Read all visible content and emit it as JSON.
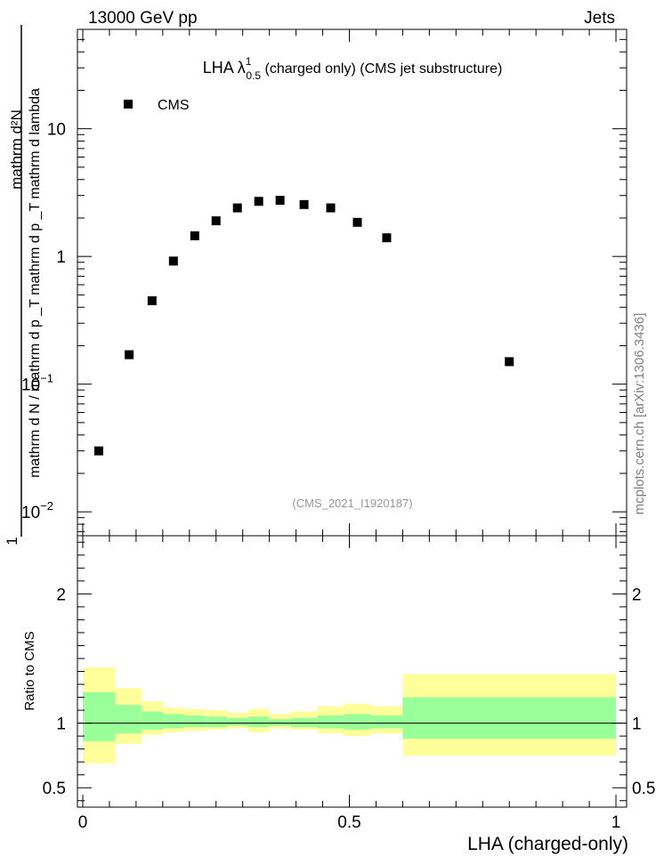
{
  "header": {
    "energy_label": "13000 GeV pp",
    "process_label": "Jets"
  },
  "side_label": "mcplots.cern.ch [arXiv:1306.3436]",
  "chart_data": [
    {
      "type": "scatter",
      "title": "LHA λ",
      "title_sup": "1",
      "title_sub": "0.5",
      "title_suffix": " (charged only) (CMS jet substructure)",
      "ylabel_numerator": "1",
      "ylabel_denominator": "mathrm d N / mathrm d p _T mathrm d p _T mathrm d lambda",
      "ylabel_top": "mathrm d²N",
      "yscale": "log",
      "ylim": [
        0.0065,
        60
      ],
      "xlim": [
        -0.01,
        1.02
      ],
      "y_ticks": [
        {
          "value": 0.01,
          "label": "10",
          "sup": "−2"
        },
        {
          "value": 0.1,
          "label": "10",
          "sup": "−1"
        },
        {
          "value": 1,
          "label": "1",
          "sup": ""
        },
        {
          "value": 10,
          "label": "10",
          "sup": ""
        }
      ],
      "legend": {
        "placement": "top-left",
        "entries": [
          "CMS"
        ]
      },
      "watermark": "(CMS_2021_I1920187)",
      "series": [
        {
          "name": "CMS",
          "marker": "square",
          "color": "#000000",
          "x": [
            0.03,
            0.087,
            0.13,
            0.17,
            0.21,
            0.25,
            0.29,
            0.33,
            0.37,
            0.415,
            0.465,
            0.515,
            0.57,
            0.8
          ],
          "y": [
            0.03,
            0.17,
            0.45,
            0.92,
            1.45,
            1.9,
            2.4,
            2.7,
            2.75,
            2.55,
            2.4,
            1.85,
            1.4,
            0.15
          ]
        }
      ]
    },
    {
      "type": "area",
      "ylabel": "Ratio to CMS",
      "xlabel": "LHA (charged-only)",
      "xlim": [
        -0.01,
        1.02
      ],
      "ylim": [
        0.35,
        2.45
      ],
      "x_ticks": [
        {
          "value": 0,
          "label": "0"
        },
        {
          "value": 0.5,
          "label": "0.5"
        },
        {
          "value": 1,
          "label": "1"
        }
      ],
      "y_ticks": [
        {
          "value": 0.5,
          "label": "0.5"
        },
        {
          "value": 1,
          "label": "1"
        },
        {
          "value": 2,
          "label": "2"
        }
      ],
      "reference_line": 1,
      "bands": {
        "outer_color": "#ffff99",
        "inner_color": "#99ff99",
        "bins": [
          {
            "x0": 0.0,
            "x1": 0.06,
            "outer": [
              0.69,
              1.43
            ],
            "inner": [
              0.86,
              1.24
            ]
          },
          {
            "x0": 0.06,
            "x1": 0.11,
            "outer": [
              0.84,
              1.27
            ],
            "inner": [
              0.92,
              1.14
            ]
          },
          {
            "x0": 0.11,
            "x1": 0.15,
            "outer": [
              0.91,
              1.17
            ],
            "inner": [
              0.95,
              1.09
            ]
          },
          {
            "x0": 0.15,
            "x1": 0.19,
            "outer": [
              0.93,
              1.12
            ],
            "inner": [
              0.96,
              1.07
            ]
          },
          {
            "x0": 0.19,
            "x1": 0.23,
            "outer": [
              0.94,
              1.11
            ],
            "inner": [
              0.97,
              1.06
            ]
          },
          {
            "x0": 0.23,
            "x1": 0.27,
            "outer": [
              0.95,
              1.1
            ],
            "inner": [
              0.97,
              1.05
            ]
          },
          {
            "x0": 0.27,
            "x1": 0.31,
            "outer": [
              0.96,
              1.08
            ],
            "inner": [
              0.98,
              1.04
            ]
          },
          {
            "x0": 0.31,
            "x1": 0.35,
            "outer": [
              0.93,
              1.11
            ],
            "inner": [
              0.97,
              1.05
            ]
          },
          {
            "x0": 0.35,
            "x1": 0.39,
            "outer": [
              0.96,
              1.07
            ],
            "inner": [
              0.98,
              1.03
            ]
          },
          {
            "x0": 0.39,
            "x1": 0.44,
            "outer": [
              0.95,
              1.09
            ],
            "inner": [
              0.97,
              1.04
            ]
          },
          {
            "x0": 0.44,
            "x1": 0.49,
            "outer": [
              0.92,
              1.13
            ],
            "inner": [
              0.96,
              1.06
            ]
          },
          {
            "x0": 0.49,
            "x1": 0.54,
            "outer": [
              0.9,
              1.15
            ],
            "inner": [
              0.95,
              1.07
            ]
          },
          {
            "x0": 0.54,
            "x1": 0.6,
            "outer": [
              0.92,
              1.13
            ],
            "inner": [
              0.96,
              1.06
            ]
          },
          {
            "x0": 0.6,
            "x1": 1.0,
            "outer": [
              0.75,
              1.38
            ],
            "inner": [
              0.88,
              1.2
            ]
          }
        ]
      }
    }
  ]
}
